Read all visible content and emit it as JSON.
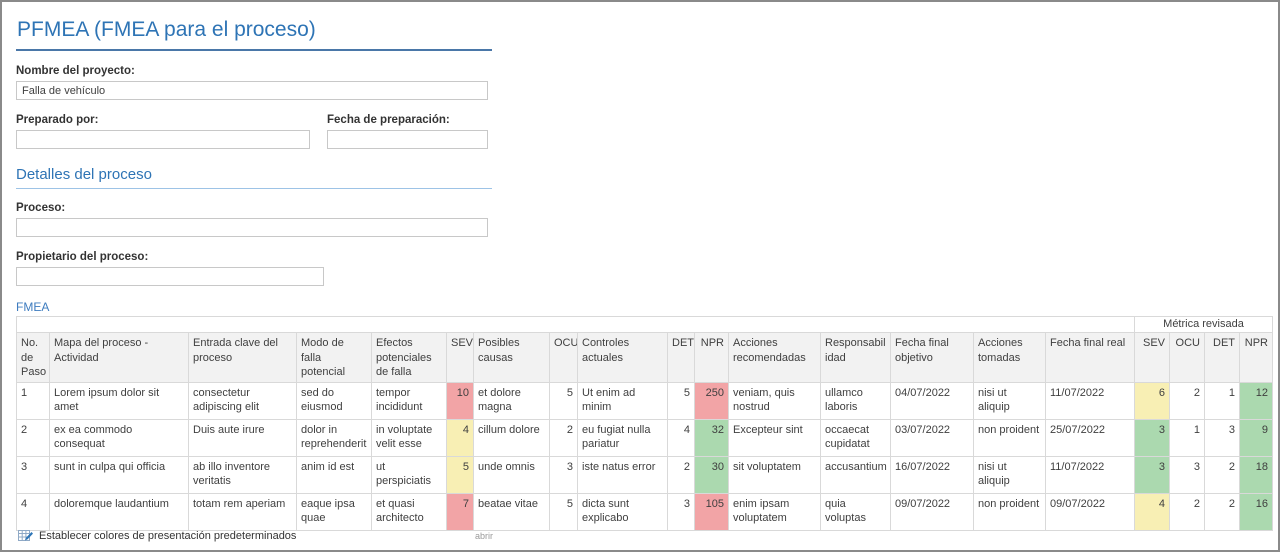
{
  "page": {
    "title": "PFMEA (FMEA para el proceso)"
  },
  "form": {
    "project_name": {
      "label": "Nombre del proyecto:",
      "value": "Falla de vehículo"
    },
    "prepared_by": {
      "label": "Preparado por:",
      "value": ""
    },
    "prep_date": {
      "label": "Fecha de preparación:",
      "value": ""
    },
    "section_title": "Detalles del proceso",
    "process": {
      "label": "Proceso:",
      "value": ""
    },
    "process_owner": {
      "label": "Propietario del proceso:",
      "value": ""
    }
  },
  "fmea": {
    "label": "FMEA",
    "group_header": "Métrica revisada",
    "columns": [
      "No. de Paso",
      "Mapa del proceso - Actividad",
      "Entrada clave del proceso",
      "Modo de falla potencial",
      "Efectos potenciales de falla",
      "SEV",
      "Posibles causas",
      "OCU",
      "Controles actuales",
      "DET",
      "NPR",
      "Acciones recomendadas",
      "Responsabilidad",
      "Fecha final objetivo",
      "Acciones tomadas",
      "Fecha final real",
      "SEV",
      "OCU",
      "DET",
      "NPR"
    ],
    "rows": [
      {
        "no": "1",
        "activity": "Lorem ipsum dolor sit amet",
        "key_input": "consectetur adipiscing elit",
        "failure_mode": "sed do eiusmod",
        "failure_effects": "tempor incididunt",
        "sev": "10",
        "causes": "et dolore magna",
        "ocu": "5",
        "controls": "Ut enim ad minim",
        "det": "5",
        "npr": "250",
        "recommended": "veniam, quis nostrud",
        "responsibility": "ullamco laboris",
        "target_date": "04/07/2022",
        "actions_taken": "nisi ut aliquip",
        "actual_date": "11/07/2022",
        "rev_sev": "6",
        "rev_ocu": "2",
        "rev_det": "1",
        "rev_npr": "12",
        "colors": {
          "sev": "red",
          "npr": "red",
          "rev_sev": "yellow",
          "rev_npr": "green"
        }
      },
      {
        "no": "2",
        "activity": "ex ea commodo consequat",
        "key_input": "Duis aute irure",
        "failure_mode": "dolor in reprehenderit",
        "failure_effects": "in voluptate velit esse",
        "sev": "4",
        "causes": "cillum dolore",
        "ocu": "2",
        "controls": "eu fugiat nulla pariatur",
        "det": "4",
        "npr": "32",
        "recommended": "Excepteur sint",
        "responsibility": "occaecat cupidatat",
        "target_date": "03/07/2022",
        "actions_taken": "non proident",
        "actual_date": "25/07/2022",
        "rev_sev": "3",
        "rev_ocu": "1",
        "rev_det": "3",
        "rev_npr": "9",
        "colors": {
          "sev": "yellow",
          "npr": "green",
          "rev_sev": "green",
          "rev_npr": "green"
        }
      },
      {
        "no": "3",
        "activity": "sunt in culpa qui officia",
        "key_input": "ab illo inventore veritatis",
        "failure_mode": "anim id est",
        "failure_effects": "ut perspiciatis",
        "sev": "5",
        "causes": "unde omnis",
        "ocu": "3",
        "controls": "iste natus error",
        "det": "2",
        "npr": "30",
        "recommended": "sit voluptatem",
        "responsibility": "accusantium",
        "target_date": "16/07/2022",
        "actions_taken": "nisi ut aliquip",
        "actual_date": "11/07/2022",
        "rev_sev": "3",
        "rev_ocu": "3",
        "rev_det": "2",
        "rev_npr": "18",
        "colors": {
          "sev": "yellow",
          "npr": "green",
          "rev_sev": "green",
          "rev_npr": "green"
        }
      },
      {
        "no": "4",
        "activity": "doloremque laudantium",
        "key_input": "totam rem aperiam",
        "failure_mode": "eaque ipsa quae",
        "failure_effects": "et quasi architecto",
        "sev": "7",
        "causes": "beatae vitae",
        "ocu": "5",
        "controls": "dicta sunt explicabo",
        "det": "3",
        "npr": "105",
        "recommended": "enim ipsam voluptatem",
        "responsibility": "quia voluptas",
        "target_date": "09/07/2022",
        "actions_taken": "non proident",
        "actual_date": "09/07/2022",
        "rev_sev": "4",
        "rev_ocu": "2",
        "rev_det": "2",
        "rev_npr": "16",
        "colors": {
          "sev": "red",
          "npr": "red",
          "rev_sev": "yellow",
          "rev_npr": "green"
        }
      }
    ]
  },
  "footer": {
    "set_colors_label": "Establecer colores de presentación predeterminados",
    "open_label": "abrir"
  },
  "colors": {
    "red": "#F2A4A6",
    "yellow": "#F8EFB4",
    "green": "#ABD9AF",
    "accent": "#2E74B5"
  }
}
